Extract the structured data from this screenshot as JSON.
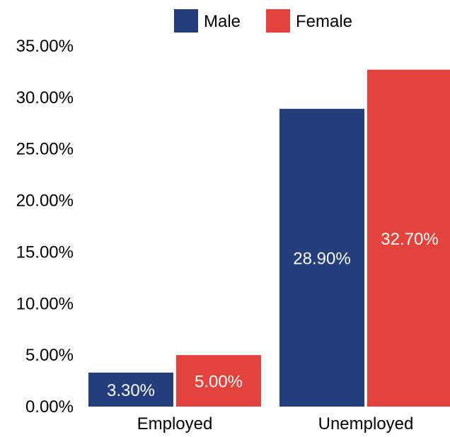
{
  "chart_data": {
    "type": "bar",
    "title": "",
    "xlabel": "",
    "ylabel": "",
    "categories": [
      "Employed",
      "Unemployed"
    ],
    "series": [
      {
        "name": "Male",
        "color": "#233E7B",
        "values": [
          3.3,
          28.9
        ],
        "labels": [
          "3.30%",
          "28.90%"
        ]
      },
      {
        "name": "Female",
        "color": "#E2433D",
        "values": [
          5.0,
          32.7
        ],
        "labels": [
          "5.00%",
          "32.70%"
        ]
      }
    ],
    "ylim": [
      0,
      35
    ],
    "y_ticks": [
      0,
      5,
      10,
      15,
      20,
      25,
      30,
      35
    ],
    "y_tick_labels": [
      "0.00%",
      "5.00%",
      "10.00%",
      "15.00%",
      "20.00%",
      "25.00%",
      "30.00%",
      "35.00%"
    ],
    "grid": false,
    "legend_position": "top-right",
    "data_label_color": "#ffffff"
  }
}
